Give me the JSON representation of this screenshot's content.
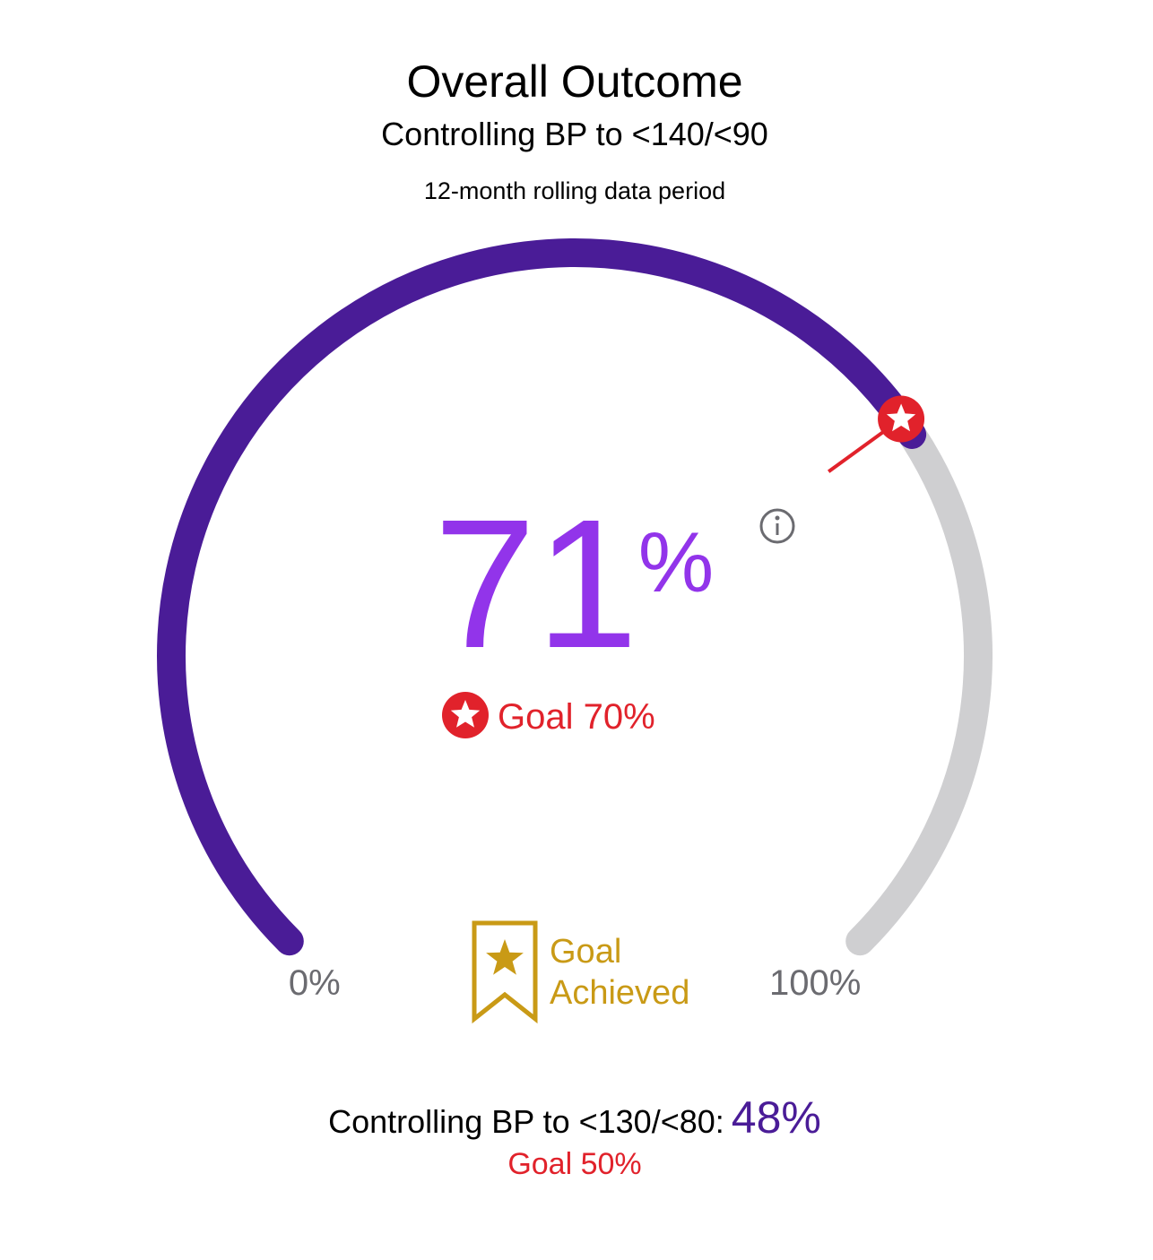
{
  "chart_data": {
    "type": "gauge",
    "title": "Overall Outcome",
    "subtitle": "Controlling BP to <140/<90",
    "note": "12-month rolling data period",
    "value": 71,
    "unit": "%",
    "goal": 70,
    "goal_label": "Goal 70%",
    "ylim": [
      0,
      100
    ],
    "yticks": [
      {
        "value": 0,
        "label": "0%"
      },
      {
        "value": 100,
        "label": "100%"
      }
    ],
    "color": "#4a1c97",
    "track_color": "#cfcfd1",
    "value_color": "#9234ea",
    "goal_color": "#e1222b",
    "status": [
      "Goal",
      "Achieved"
    ],
    "secondary": {
      "label": "Controlling BP to <130/<80:",
      "value": 48,
      "value_label": "48%",
      "goal": 50,
      "goal_label": "Goal 50%"
    }
  }
}
